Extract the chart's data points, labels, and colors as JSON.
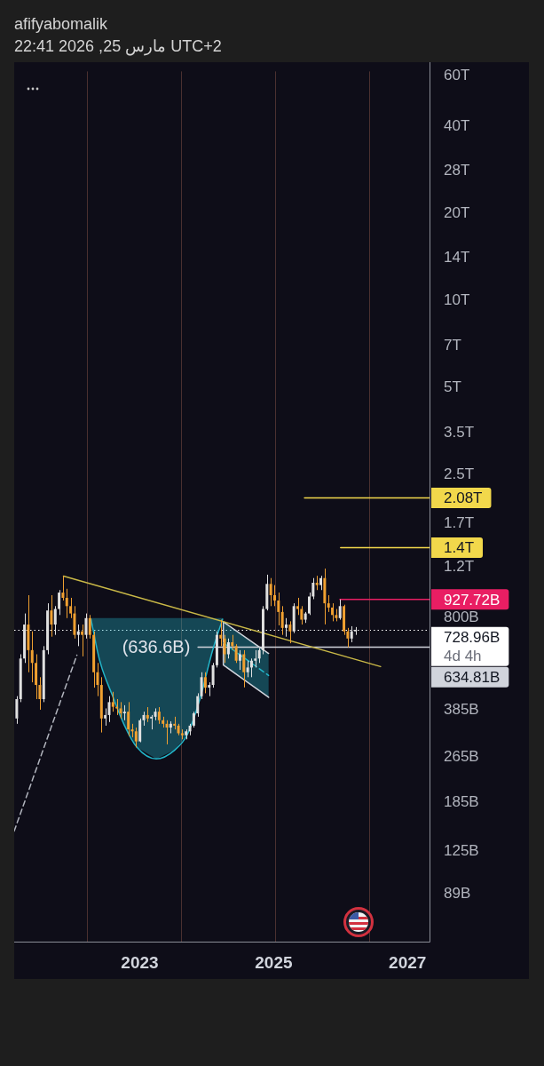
{
  "chart_data": {
    "type": "candlestick",
    "title": "afifyabomalik",
    "subtitle": "UTC+2 مارس 25, 2026 22:41",
    "x": [
      "2021-03-01",
      "2021-03-22",
      "2021-04-12",
      "2021-05-03",
      "2021-05-24",
      "2021-06-14",
      "2021-07-05",
      "2021-07-26",
      "2021-08-16",
      "2021-09-06",
      "2021-09-27",
      "2021-10-18",
      "2021-11-08",
      "2021-11-29",
      "2021-12-20",
      "2022-01-10",
      "2022-01-31",
      "2022-02-21",
      "2022-03-14",
      "2022-04-04",
      "2022-04-25",
      "2022-05-16",
      "2022-06-06",
      "2022-06-27",
      "2022-07-18",
      "2022-08-08",
      "2022-08-29",
      "2022-09-19",
      "2022-10-10",
      "2022-10-31",
      "2022-11-21",
      "2022-12-12",
      "2023-01-02",
      "2023-01-23",
      "2023-02-13",
      "2023-03-06",
      "2023-03-27",
      "2023-04-17",
      "2023-05-08",
      "2023-05-29",
      "2023-06-19",
      "2023-07-10",
      "2023-07-31",
      "2023-08-21",
      "2023-09-11",
      "2023-10-02",
      "2023-10-23",
      "2023-11-13",
      "2023-12-04",
      "2023-12-25",
      "2024-01-15",
      "2024-02-05",
      "2024-02-26",
      "2024-03-18",
      "2024-04-08",
      "2024-04-29",
      "2024-05-20",
      "2024-06-10",
      "2024-07-01",
      "2024-07-22",
      "2024-08-12",
      "2024-09-02",
      "2024-09-23",
      "2024-10-14",
      "2024-11-04",
      "2024-11-25",
      "2024-12-16",
      "2025-01-06",
      "2025-01-27",
      "2025-02-17",
      "2025-03-10",
      "2025-03-31",
      "2025-04-21",
      "2025-05-12",
      "2025-06-02",
      "2025-06-23",
      "2025-07-14",
      "2025-08-04",
      "2025-08-25",
      "2025-09-15",
      "2025-10-06",
      "2025-10-27",
      "2025-11-17",
      "2025-12-08",
      "2025-12-29",
      "2026-01-19",
      "2026-02-09",
      "2026-03-02",
      "2026-03-23"
    ],
    "ohlc": [
      [
        360000000000.0,
        430000000000.0,
        345000000000.0,
        420000000000.0
      ],
      [
        420000000000.0,
        600000000000.0,
        410000000000.0,
        580000000000.0
      ],
      [
        580000000000.0,
        830000000000.0,
        560000000000.0,
        760000000000.0
      ],
      [
        760000000000.0,
        960000000000.0,
        520000000000.0,
        620000000000.0
      ],
      [
        620000000000.0,
        720000000000.0,
        480000000000.0,
        560000000000.0
      ],
      [
        560000000000.0,
        600000000000.0,
        420000000000.0,
        470000000000.0
      ],
      [
        470000000000.0,
        500000000000.0,
        386000000000.0,
        420000000000.0
      ],
      [
        420000000000.0,
        640000000000.0,
        410000000000.0,
        620000000000.0
      ],
      [
        620000000000.0,
        900000000000.0,
        600000000000.0,
        850000000000.0
      ],
      [
        850000000000.0,
        960000000000.0,
        690000000000.0,
        760000000000.0
      ],
      [
        760000000000.0,
        880000000000.0,
        700000000000.0,
        860000000000.0
      ],
      [
        860000000000.0,
        1000000000000.0,
        820000000000.0,
        980000000000.0
      ],
      [
        980000000000.0,
        1118000000000.0,
        920000000000.0,
        940000000000.0
      ],
      [
        940000000000.0,
        1010000000000.0,
        800000000000.0,
        880000000000.0
      ],
      [
        880000000000.0,
        940000000000.0,
        800000000000.0,
        830000000000.0
      ],
      [
        830000000000.0,
        880000000000.0,
        680000000000.0,
        700000000000.0
      ],
      [
        700000000000.0,
        760000000000.0,
        640000000000.0,
        720000000000.0
      ],
      [
        720000000000.0,
        760000000000.0,
        590000000000.0,
        700000000000.0
      ],
      [
        700000000000.0,
        830000000000.0,
        680000000000.0,
        800000000000.0
      ],
      [
        800000000000.0,
        820000000000.0,
        680000000000.0,
        700000000000.0
      ],
      [
        700000000000.0,
        720000000000.0,
        460000000000.0,
        520000000000.0
      ],
      [
        520000000000.0,
        560000000000.0,
        430000000000.0,
        470000000000.0
      ],
      [
        470000000000.0,
        500000000000.0,
        322000000000.0,
        360000000000.0
      ],
      [
        360000000000.0,
        390000000000.0,
        340000000000.0,
        370000000000.0
      ],
      [
        370000000000.0,
        430000000000.0,
        350000000000.0,
        410000000000.0
      ],
      [
        410000000000.0,
        445000000000.0,
        380000000000.0,
        395000000000.0
      ],
      [
        395000000000.0,
        420000000000.0,
        370000000000.0,
        390000000000.0
      ],
      [
        390000000000.0,
        410000000000.0,
        360000000000.0,
        375000000000.0
      ],
      [
        375000000000.0,
        400000000000.0,
        355000000000.0,
        380000000000.0
      ],
      [
        380000000000.0,
        410000000000.0,
        313000000000.0,
        330000000000.0
      ],
      [
        330000000000.0,
        345000000000.0,
        310000000000.0,
        325000000000.0
      ],
      [
        325000000000.0,
        335000000000.0,
        286000000000.0,
        300000000000.0
      ],
      [
        300000000000.0,
        360000000000.0,
        298000000000.0,
        355000000000.0
      ],
      [
        355000000000.0,
        380000000000.0,
        340000000000.0,
        370000000000.0
      ],
      [
        370000000000.0,
        394000000000.0,
        350000000000.0,
        360000000000.0
      ],
      [
        360000000000.0,
        370000000000.0,
        330000000000.0,
        365000000000.0
      ],
      [
        365000000000.0,
        390000000000.0,
        355000000000.0,
        380000000000.0
      ],
      [
        380000000000.0,
        394000000000.0,
        345000000000.0,
        355000000000.0
      ],
      [
        355000000000.0,
        365000000000.0,
        335000000000.0,
        345000000000.0
      ],
      [
        345000000000.0,
        355000000000.0,
        293000000000.0,
        335000000000.0
      ],
      [
        335000000000.0,
        352000000000.0,
        320000000000.0,
        345000000000.0
      ],
      [
        345000000000.0,
        365000000000.0,
        330000000000.0,
        340000000000.0
      ],
      [
        340000000000.0,
        345000000000.0,
        315000000000.0,
        320000000000.0
      ],
      [
        320000000000.0,
        330000000000.0,
        305000000000.0,
        315000000000.0
      ],
      [
        315000000000.0,
        330000000000.0,
        305000000000.0,
        325000000000.0
      ],
      [
        325000000000.0,
        345000000000.0,
        315000000000.0,
        340000000000.0
      ],
      [
        340000000000.0,
        380000000000.0,
        335000000000.0,
        375000000000.0
      ],
      [
        375000000000.0,
        440000000000.0,
        365000000000.0,
        430000000000.0
      ],
      [
        430000000000.0,
        520000000000.0,
        420000000000.0,
        500000000000.0
      ],
      [
        500000000000.0,
        520000000000.0,
        440000000000.0,
        460000000000.0
      ],
      [
        460000000000.0,
        480000000000.0,
        430000000000.0,
        470000000000.0
      ],
      [
        470000000000.0,
        560000000000.0,
        460000000000.0,
        550000000000.0
      ],
      [
        550000000000.0,
        720000000000.0,
        540000000000.0,
        700000000000.0
      ],
      [
        700000000000.0,
        790000000000.0,
        640000000000.0,
        680000000000.0
      ],
      [
        680000000000.0,
        700000000000.0,
        560000000000.0,
        600000000000.0
      ],
      [
        600000000000.0,
        680000000000.0,
        580000000000.0,
        660000000000.0
      ],
      [
        660000000000.0,
        700000000000.0,
        620000000000.0,
        640000000000.0
      ],
      [
        640000000000.0,
        650000000000.0,
        560000000000.0,
        570000000000.0
      ],
      [
        570000000000.0,
        620000000000.0,
        530000000000.0,
        600000000000.0
      ],
      [
        600000000000.0,
        620000000000.0,
        461000000000.0,
        520000000000.0
      ],
      [
        520000000000.0,
        570000000000.0,
        500000000000.0,
        540000000000.0
      ],
      [
        540000000000.0,
        580000000000.0,
        500000000000.0,
        570000000000.0
      ],
      [
        570000000000.0,
        620000000000.0,
        540000000000.0,
        580000000000.0
      ],
      [
        580000000000.0,
        630000000000.0,
        560000000000.0,
        620000000000.0
      ],
      [
        620000000000.0,
        880000000000.0,
        600000000000.0,
        860000000000.0
      ],
      [
        860000000000.0,
        1130000000000.0,
        850000000000.0,
        1050000000000.0
      ],
      [
        1050000000000.0,
        1100000000000.0,
        880000000000.0,
        960000000000.0
      ],
      [
        960000000000.0,
        1040000000000.0,
        880000000000.0,
        920000000000.0
      ],
      [
        920000000000.0,
        980000000000.0,
        755000000000.0,
        840000000000.0
      ],
      [
        840000000000.0,
        880000000000.0,
        700000000000.0,
        740000000000.0
      ],
      [
        740000000000.0,
        800000000000.0,
        690000000000.0,
        760000000000.0
      ],
      [
        760000000000.0,
        780000000000.0,
        655000000000.0,
        720000000000.0
      ],
      [
        720000000000.0,
        900000000000.0,
        710000000000.0,
        880000000000.0
      ],
      [
        880000000000.0,
        940000000000.0,
        820000000000.0,
        860000000000.0
      ],
      [
        860000000000.0,
        880000000000.0,
        760000000000.0,
        790000000000.0
      ],
      [
        790000000000.0,
        840000000000.0,
        770000000000.0,
        830000000000.0
      ],
      [
        830000000000.0,
        980000000000.0,
        820000000000.0,
        950000000000.0
      ],
      [
        950000000000.0,
        1100000000000.0,
        930000000000.0,
        1060000000000.0
      ],
      [
        1060000000000.0,
        1120000000000.0,
        1000000000000.0,
        1040000000000.0
      ],
      [
        1040000000000.0,
        1120000000000.0,
        1000000000000.0,
        1100000000000.0
      ],
      [
        1100000000000.0,
        1186000000000.0,
        761000000000.0,
        900000000000.0
      ],
      [
        900000000000.0,
        960000000000.0,
        840000000000.0,
        870000000000.0
      ],
      [
        870000000000.0,
        900000000000.0,
        780000000000.0,
        820000000000.0
      ],
      [
        820000000000.0,
        860000000000.0,
        780000000000.0,
        800000000000.0
      ],
      [
        800000000000.0,
        928000000000.0,
        790000000000.0,
        880000000000.0
      ],
      [
        880000000000.0,
        890000000000.0,
        700000000000.0,
        720000000000.0
      ],
      [
        720000000000.0,
        740000000000.0,
        634000000000.0,
        680000000000.0
      ],
      [
        680000000000.0,
        750000000000.0,
        660000000000.0,
        720000000000.0
      ],
      [
        720000000000.0,
        745000000000.0,
        700000000000.0,
        728960000000.0
      ]
    ],
    "colors": [
      "#e0e0e0",
      "#e0e0e0",
      "#e0e0e0",
      "#f0a030",
      "#f0a030",
      "#f0a030",
      "#f0a030",
      "#e0e0e0",
      "#e0e0e0",
      "#f0a030",
      "#e0e0e0",
      "#e0e0e0",
      "#f0a030",
      "#f0a030",
      "#f0a030",
      "#f0a030",
      "#e0e0e0",
      "#f0a030",
      "#e0e0e0",
      "#f0a030",
      "#f0a030",
      "#f0a030",
      "#f0a030",
      "#e0e0e0",
      "#e0e0e0",
      "#f0a030",
      "#f0a030",
      "#f0a030",
      "#e0e0e0",
      "#f0a030",
      "#f0a030",
      "#f0a030",
      "#e0e0e0",
      "#e0e0e0",
      "#f0a030",
      "#e0e0e0",
      "#e0e0e0",
      "#f0a030",
      "#f0a030",
      "#f0a030",
      "#e0e0e0",
      "#f0a030",
      "#f0a030",
      "#f0a030",
      "#e0e0e0",
      "#e0e0e0",
      "#e0e0e0",
      "#e0e0e0",
      "#e0e0e0",
      "#f0a030",
      "#e0e0e0",
      "#e0e0e0",
      "#e0e0e0",
      "#f0a030",
      "#f0a030",
      "#e0e0e0",
      "#f0a030",
      "#f0a030",
      "#e0e0e0",
      "#f0a030",
      "#e0e0e0",
      "#e0e0e0",
      "#e0e0e0",
      "#e0e0e0",
      "#e0e0e0",
      "#e0e0e0",
      "#f0a030",
      "#f0a030",
      "#f0a030",
      "#f0a030",
      "#e0e0e0",
      "#f0a030",
      "#e0e0e0",
      "#f0a030",
      "#f0a030",
      "#e0e0e0",
      "#e0e0e0",
      "#e0e0e0",
      "#f0a030",
      "#e0e0e0",
      "#f0a030",
      "#f0a030",
      "#f0a030",
      "#f0a030",
      "#e0e0e0",
      "#f0a030",
      "#f0a030",
      "#e0e0e0",
      "#e0e0e0"
    ],
    "series": [
      {
        "type": "line",
        "color": "#c9b847",
        "x": [
          "2021-11-11",
          "2026-08-07"
        ],
        "values": [
          1118000000000.0,
          544000000000.0
        ]
      },
      {
        "type": "line",
        "color": "#22b5c9",
        "x": [
          "2022-04-10",
          "2022-05-26",
          "2022-08-03",
          "2022-10-10",
          "2022-12-17",
          "2023-04-01",
          "2023-07-11",
          "2023-09-18",
          "2023-11-25",
          "2024-02-02",
          "2024-03-28"
        ],
        "values": [
          793000000000.0,
          575000000000.0,
          435000000000.0,
          340000000000.0,
          286000000000.0,
          261000000000.0,
          280000000000.0,
          317000000000.0,
          420000000000.0,
          617000000000.0,
          793000000000.0
        ],
        "lower": [
          793000000000.0,
          575000000000.0,
          435000000000.0,
          340000000000.0,
          286000000000.0,
          261000000000.0,
          280000000000.0,
          317000000000.0,
          420000000000.0,
          617000000000.0,
          793000000000.0
        ],
        "upper": [
          800000000000.0,
          800000000000.0,
          800000000000.0,
          800000000000.0,
          800000000000.0,
          800000000000.0,
          800000000000.0,
          800000000000.0,
          800000000000.0,
          800000000000.0,
          800000000000.0
        ]
      },
      {
        "type": "line",
        "color": "#22b5c9",
        "line_style": "dashed",
        "x": [
          "2024-04-01",
          "2024-12-04"
        ],
        "values": [
          657000000000.0,
          507000000000.0
        ],
        "lower": [
          551000000000.0,
          426000000000.0
        ],
        "upper": [
          777000000000.0,
          604000000000.0
        ]
      },
      {
        "type": "line",
        "color": "#d1d4dc",
        "x": [
          "2024-12-04",
          "2024-04-01",
          "2024-04-01",
          "2024-12-04"
        ],
        "values": [
          604000000000.0,
          777000000000.0,
          551000000000.0,
          426000000000.0
        ]
      },
      {
        "type": "line",
        "color": "#b2b5be",
        "line_style": "dashed",
        "x": [
          "2021-02-15",
          "2022-01-23"
        ],
        "values": [
          147000000000.0,
          596000000000.0
        ]
      },
      {
        "type": "line",
        "color": "#f2d84b",
        "x": [
          "2025-06-18",
          "2027-05-01"
        ],
        "values": [
          2080000000000.0,
          2080000000000.0
        ],
        "value_labels": [
          null,
          "2.08T"
        ]
      },
      {
        "type": "line",
        "color": "#f2d84b",
        "x": [
          "2026-01-01",
          "2027-05-01"
        ],
        "values": [
          1400000000000.0,
          1400000000000.0
        ],
        "value_labels": [
          null,
          "1.4T"
        ]
      },
      {
        "type": "line",
        "color": "#e91e63",
        "x": [
          "2025-12-28",
          "2027-05-01"
        ],
        "values": [
          927720000000.0,
          927720000000.0
        ],
        "value_labels": [
          null,
          "927.72B"
        ]
      },
      {
        "type": "line",
        "color": "#d1d4dc",
        "x": [
          "2023-11-15",
          "2027-05-01"
        ],
        "values": [
          634810000000.0,
          634810000000.0
        ],
        "value_labels": [
          null,
          "634.81B"
        ]
      }
    ],
    "xlim": [
      "2021-02-15",
      "2027-05-01"
    ],
    "xticks": [
      "2023",
      "2025",
      "2027"
    ],
    "ylim": [
      61000000000.0,
      62000000000000.0
    ],
    "yticks": [
      {
        "value": 60000000000000.0,
        "label": "60T"
      },
      {
        "value": 40000000000000.0,
        "label": "40T"
      },
      {
        "value": 28000000000000.0,
        "label": "28T"
      },
      {
        "value": 20000000000000.0,
        "label": "20T"
      },
      {
        "value": 14000000000000.0,
        "label": "14T"
      },
      {
        "value": 10000000000000.0,
        "label": "10T"
      },
      {
        "value": 7000000000000.0,
        "label": "7T"
      },
      {
        "value": 5000000000000.0,
        "label": "5T"
      },
      {
        "value": 3500000000000.0,
        "label": "3.5T"
      },
      {
        "value": 2500000000000.0,
        "label": "2.5T"
      },
      {
        "value": 1700000000000.0,
        "label": "1.7T"
      },
      {
        "value": 1200000000000.0,
        "label": "1.2T"
      },
      {
        "value": 800000000000.0,
        "label": "800B"
      },
      {
        "value": 385000000000.0,
        "label": "385B"
      },
      {
        "value": 265000000000.0,
        "label": "265B"
      },
      {
        "value": 185000000000.0,
        "label": "185B"
      },
      {
        "value": 125000000000.0,
        "label": "125B"
      },
      {
        "value": 89000000000.0,
        "label": "89B"
      }
    ],
    "log": true,
    "ref_lines": [
      {
        "axis": "y",
        "value": 728960000000.0,
        "label": "728.96B",
        "color": "#ffffff",
        "line_style": "dotted"
      },
      {
        "axis": "x",
        "value": "2022-03-19",
        "color": "#4a3030"
      },
      {
        "axis": "x",
        "value": "2023-08-12",
        "color": "#4a3030"
      },
      {
        "axis": "x",
        "value": "2025-01-10",
        "color": "#4a3030"
      },
      {
        "axis": "x",
        "value": "2026-06-05",
        "color": "#4a3030"
      }
    ],
    "annotations": [
      "(636.6B)",
      "4d 4h"
    ]
  }
}
